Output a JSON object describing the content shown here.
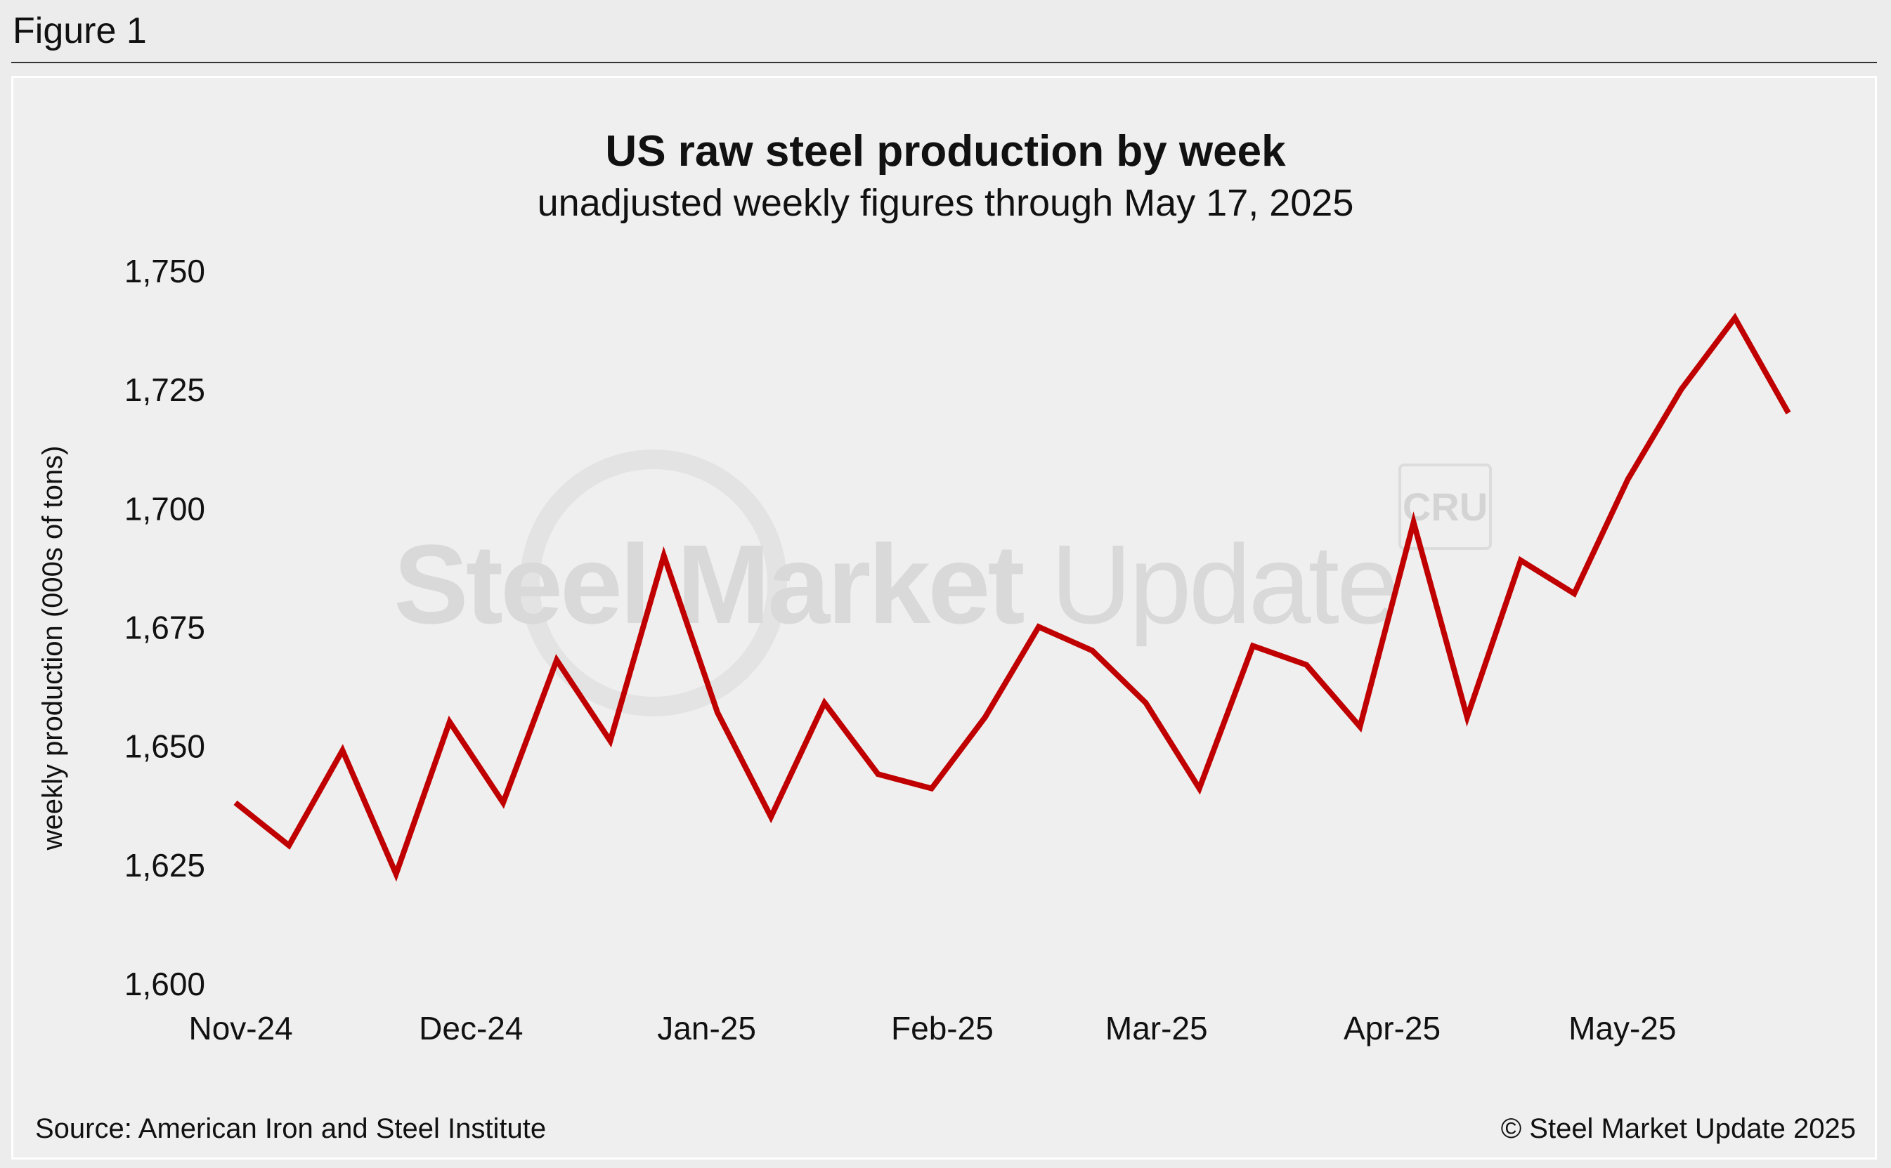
{
  "figure_label": "Figure 1",
  "source": "Source: American Iron and Steel Institute",
  "copyright": "© Steel Market Update 2025",
  "watermark": {
    "bold": "Steel Market",
    "light": " Update",
    "badge": "CRU"
  },
  "colors": {
    "line": "#c00000",
    "background": "#efefef"
  },
  "chart_data": {
    "type": "line",
    "title": "US raw steel production by week",
    "subtitle": "unadjusted weekly figures through May 17, 2025",
    "xlabel": "",
    "ylabel": "weekly production (000s of tons)",
    "ylim": [
      1600,
      1750
    ],
    "yticks": [
      1600,
      1625,
      1650,
      1675,
      1700,
      1725,
      1750
    ],
    "ytick_labels": [
      "1,600",
      "1,625",
      "1,650",
      "1,675",
      "1,700",
      "1,725",
      "1,750"
    ],
    "xtick_labels": [
      "Nov-24",
      "Dec-24",
      "Jan-25",
      "Feb-25",
      "Mar-25",
      "Apr-25",
      "May-25"
    ],
    "xtick_week_index": [
      0.1,
      4.4,
      8.8,
      13.2,
      17.2,
      21.6,
      25.9
    ],
    "grid": false,
    "series": [
      {
        "name": "weekly production",
        "values": [
          1638,
          1629,
          1649,
          1623,
          1655,
          1638,
          1668,
          1651,
          1690,
          1657,
          1635,
          1659,
          1644,
          1641,
          1656,
          1675,
          1670,
          1659,
          1641,
          1671,
          1667,
          1654,
          1697,
          1656,
          1689,
          1682,
          1706,
          1725,
          1740,
          1720
        ]
      }
    ]
  }
}
